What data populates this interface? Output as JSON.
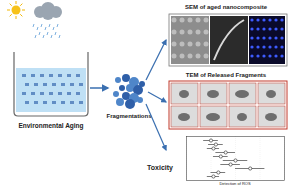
{
  "diagram": {
    "left": {
      "label": "Environmental Aging"
    },
    "middle": {
      "label": "Fragmentations"
    },
    "panels": [
      {
        "label": "SEM of aged nanocomposite",
        "frame_color": "#777777"
      },
      {
        "label": "TEM of Released Fragments",
        "frame_color": "#c0392b"
      },
      {
        "label": "Toxicity"
      }
    ]
  },
  "chart_data": {
    "type": "dot",
    "orientation": "horizontal",
    "x_label": "Detection of ROS",
    "categories": [
      null,
      null,
      null,
      null,
      null,
      null,
      null,
      null,
      null,
      null
    ],
    "values": [
      1.0,
      1.2,
      1.1,
      1.6,
      1.4,
      2.0,
      1.8,
      2.6,
      1.3,
      1.1
    ],
    "errors": [
      0.3,
      0.3,
      0.25,
      0.4,
      0.3,
      0.5,
      0.4,
      0.6,
      0.3,
      0.25
    ],
    "xlim": [
      0,
      4
    ],
    "xticks": [
      0,
      1,
      2,
      3,
      4
    ],
    "grid": true,
    "tick_labels": false,
    "color": "#222222"
  }
}
